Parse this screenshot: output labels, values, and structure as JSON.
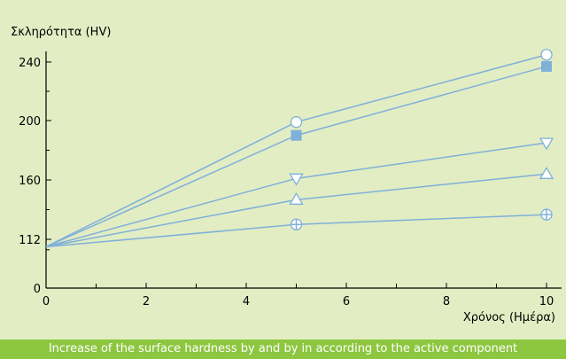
{
  "caption": "Increase of the surface hardness by and by in according to the active component",
  "colors": {
    "background": "#e2edc4",
    "series": "#7fb0d9",
    "caption_bar": "#8dc63f",
    "caption_text": "#ffffff"
  },
  "chart_data": {
    "type": "line",
    "title": "",
    "xlabel": "Χρόνος (Ημέρα)",
    "ylabel": "Σκληρότητα (HV)",
    "xlim": [
      0,
      10.3
    ],
    "ylim": [
      0,
      240
    ],
    "x_ticks": [
      0,
      2,
      4,
      6,
      8,
      10
    ],
    "x_ticks_minor": [
      1,
      3,
      5,
      7,
      9
    ],
    "y_ticks": [
      0,
      112,
      160,
      200,
      240
    ],
    "y_ticks_minor": [
      88,
      136,
      180,
      220
    ],
    "grid": false,
    "legend": "none",
    "series": [
      {
        "marker": "circle",
        "x": [
          0,
          5,
          10
        ],
        "y": [
          95,
          199,
          245
        ]
      },
      {
        "marker": "square",
        "x": [
          0,
          5,
          10
        ],
        "y": [
          95,
          190,
          237
        ]
      },
      {
        "marker": "triangle-down",
        "x": [
          0,
          5,
          10
        ],
        "y": [
          95,
          161,
          185
        ]
      },
      {
        "marker": "triangle-up",
        "x": [
          0,
          5,
          10
        ],
        "y": [
          95,
          144,
          164
        ]
      },
      {
        "marker": "circle-cross",
        "x": [
          0,
          5,
          10
        ],
        "y": [
          95,
          124,
          132
        ]
      }
    ]
  }
}
